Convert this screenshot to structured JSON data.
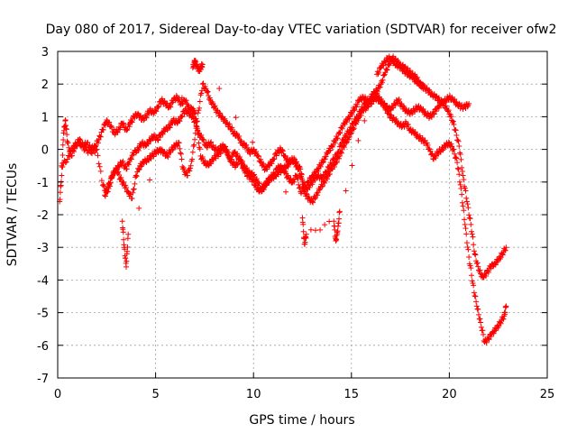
{
  "chart_data": {
    "type": "scatter",
    "title": "Day 080 of 2017, Sidereal Day-to-day VTEC variation (SDTVAR) for receiver ofw2",
    "xlabel": "GPS time / hours",
    "ylabel": "SDTVAR / TECUs",
    "xlim": [
      0,
      25
    ],
    "ylim": [
      -7,
      3
    ],
    "xticks": [
      0,
      5,
      10,
      15,
      20,
      25
    ],
    "yticks": [
      -7,
      -6,
      -5,
      -4,
      -3,
      -2,
      -1,
      0,
      1,
      2,
      3
    ],
    "grid": true,
    "marker": "plus",
    "marker_color": "#ff0000",
    "series": [
      {
        "values_note": "",
        "x": [
          0.1,
          0.2,
          0.3,
          0.4,
          0.5,
          0.7,
          0.9,
          1.1,
          1.3,
          1.5,
          1.7,
          1.9,
          2.1,
          2.3,
          2.5,
          2.7,
          2.9,
          3.1,
          3.3,
          3.5,
          3.7,
          3.9,
          4.1,
          4.3,
          4.5,
          4.7,
          4.9,
          5.1,
          5.3,
          5.5,
          5.7,
          5.9,
          6.1,
          6.3,
          6.5,
          6.7,
          6.9,
          7.0,
          7.2,
          7.4,
          7.6,
          7.8,
          8.0,
          8.2,
          8.4,
          8.6,
          8.8,
          9.0,
          9.2,
          9.4,
          9.6,
          9.8,
          10.0,
          10.2,
          10.4,
          10.6,
          10.8,
          11.0,
          11.2,
          11.4,
          11.6,
          11.8,
          12.0,
          12.2,
          12.4,
          12.6,
          12.8,
          13.0,
          13.2,
          13.4,
          13.6,
          13.8,
          14.0,
          14.2,
          14.4,
          14.6,
          14.8,
          15.0,
          15.2,
          15.4,
          15.6,
          15.8,
          16.0,
          16.2,
          16.4,
          16.6,
          16.8,
          17.0,
          17.2,
          17.4,
          17.6,
          17.8,
          18.0,
          18.2,
          18.4,
          18.6,
          18.8,
          19.0,
          19.2,
          19.4,
          19.6,
          19.8,
          20.0,
          20.2,
          20.4,
          20.6,
          20.8,
          21.0
        ],
        "y": [
          -1.6,
          -0.8,
          0.5,
          0.9,
          0.2,
          -0.2,
          0.1,
          0.3,
          0.1,
          0.2,
          0.0,
          0.1,
          0.3,
          0.6,
          0.9,
          0.7,
          0.5,
          0.6,
          0.8,
          0.6,
          0.8,
          1.0,
          1.1,
          0.9,
          1.0,
          1.2,
          1.1,
          1.3,
          1.5,
          1.4,
          1.3,
          1.5,
          1.6,
          1.4,
          1.5,
          1.3,
          1.2,
          1.1,
          0.5,
          0.3,
          0.1,
          0.2,
          0.0,
          0.0,
          0.1,
          0.0,
          -0.3,
          -0.1,
          -0.2,
          -0.4,
          -0.6,
          -0.7,
          -0.8,
          -1.0,
          -1.2,
          -1.1,
          -0.9,
          -0.8,
          -0.6,
          -0.5,
          -0.7,
          -0.9,
          -1.0,
          -0.8,
          -1.3,
          -1.2,
          -1.0,
          -0.8,
          -0.7,
          -0.5,
          -0.3,
          -0.1,
          0.1,
          0.3,
          0.5,
          0.8,
          0.9,
          1.1,
          1.3,
          1.5,
          1.6,
          1.5,
          1.4,
          1.6,
          1.5,
          1.4,
          1.3,
          1.2,
          1.4,
          1.5,
          1.3,
          1.2,
          1.1,
          1.2,
          1.3,
          1.2,
          1.1,
          1.0,
          1.1,
          1.3,
          1.4,
          1.5,
          1.6,
          1.5,
          1.4,
          1.3,
          1.3,
          1.4
        ]
      },
      {
        "values_note": "",
        "x": [
          0.2,
          0.5,
          0.8,
          1.1,
          1.4,
          1.7,
          2.0,
          2.3,
          2.5,
          2.7,
          2.9,
          3.1,
          3.3,
          3.5,
          3.7,
          3.9,
          4.1,
          4.3,
          4.5,
          4.7,
          4.9,
          5.1,
          5.3,
          5.5,
          5.7,
          5.9,
          6.1,
          6.3,
          6.5,
          6.7,
          6.9,
          7.1,
          7.3,
          7.5,
          7.7,
          7.9,
          8.1,
          8.3,
          8.5,
          8.7,
          8.9,
          9.1,
          9.3,
          9.5,
          9.7,
          9.9,
          10.1,
          10.3,
          10.5,
          10.7,
          10.9,
          11.1,
          11.3,
          11.5,
          11.7,
          11.9,
          12.1,
          12.3,
          12.5,
          12.7,
          12.9,
          13.1,
          13.3,
          13.5,
          13.7,
          13.9,
          14.1,
          14.3,
          14.5,
          14.7,
          14.9,
          15.1,
          15.3,
          15.5,
          15.7,
          15.9,
          16.1,
          16.3,
          16.5,
          16.7,
          16.9,
          17.1,
          17.3,
          17.5,
          17.7,
          17.9,
          18.1,
          18.3,
          18.5,
          18.7,
          18.9,
          19.1,
          19.3,
          19.5,
          19.7,
          19.9,
          20.1,
          20.3,
          20.5,
          20.7,
          20.9,
          21.1,
          21.3,
          21.5,
          21.7,
          21.9,
          22.1,
          22.3,
          22.5,
          22.7,
          22.9
        ],
        "y": [
          -0.5,
          -0.3,
          0.1,
          0.2,
          0.0,
          -0.1,
          0.0,
          -1.1,
          -1.3,
          -0.9,
          -0.7,
          -0.5,
          -0.4,
          -0.6,
          -0.3,
          -0.1,
          0.0,
          0.2,
          0.1,
          0.3,
          0.4,
          0.3,
          0.5,
          0.6,
          0.7,
          0.9,
          0.8,
          1.0,
          1.2,
          1.1,
          1.0,
          0.7,
          -0.2,
          -0.4,
          -0.5,
          -0.3,
          -0.2,
          -0.1,
          0.1,
          -0.2,
          -0.4,
          -0.5,
          -0.3,
          -0.6,
          -0.8,
          -0.9,
          -1.1,
          -1.3,
          -1.2,
          -1.0,
          -0.9,
          -0.8,
          -0.7,
          -0.6,
          -0.5,
          -0.4,
          -0.3,
          -0.6,
          -1.0,
          -1.2,
          -1.1,
          -0.9,
          -0.8,
          -0.9,
          -0.7,
          -0.5,
          -0.3,
          -0.1,
          0.2,
          0.4,
          0.6,
          0.8,
          1.0,
          1.2,
          1.4,
          1.5,
          1.7,
          1.8,
          2.0,
          2.3,
          2.6,
          2.8,
          2.7,
          2.6,
          2.5,
          2.4,
          2.3,
          2.2,
          2.0,
          1.9,
          1.8,
          1.7,
          1.6,
          1.5,
          1.4,
          1.2,
          1.0,
          0.6,
          0.1,
          -0.8,
          -1.6,
          -2.3,
          -3.2,
          -3.7,
          -3.9,
          -3.8,
          -3.6,
          -3.5,
          -3.4,
          -3.2,
          -3.0
        ]
      },
      {
        "values_note": "",
        "x": [
          2.4,
          2.6,
          2.8,
          3.0,
          3.2,
          3.4,
          3.6,
          3.8,
          4.0,
          4.2,
          4.4,
          4.6,
          4.8,
          5.0,
          5.2,
          5.4,
          5.6,
          5.8,
          6.0,
          6.2,
          6.4,
          6.6,
          6.8,
          7.0,
          7.2,
          7.4,
          7.6,
          7.8,
          8.0,
          8.2,
          8.4,
          8.6,
          8.8,
          9.0,
          9.2,
          9.4,
          9.6,
          9.8,
          10.0,
          10.2,
          10.4,
          10.6,
          10.8,
          11.0,
          11.2,
          11.4,
          11.6,
          11.8,
          12.0,
          12.2,
          12.4,
          12.6,
          12.8,
          13.0,
          13.2,
          13.4,
          13.6,
          13.8,
          14.0,
          14.2,
          14.4,
          14.6,
          14.8,
          15.0,
          15.2,
          15.4,
          15.6,
          15.8,
          16.0,
          16.2,
          16.4,
          16.6,
          16.8,
          17.0,
          17.2,
          17.4,
          17.6,
          17.8,
          18.0,
          18.2,
          18.4,
          18.6,
          18.8,
          19.0,
          19.2,
          19.4,
          19.6,
          19.8,
          20.0,
          20.2,
          20.4,
          20.6,
          20.8,
          21.0,
          21.2,
          21.4,
          21.6,
          21.8,
          22.0,
          22.2,
          22.4,
          22.6,
          22.8,
          22.9
        ],
        "y": [
          -1.4,
          -1.2,
          -0.8,
          -0.6,
          -0.9,
          -1.1,
          -1.3,
          -1.5,
          -0.8,
          -0.5,
          -0.4,
          -0.3,
          -0.2,
          -0.1,
          0.0,
          -0.1,
          -0.2,
          0.0,
          0.1,
          0.2,
          -0.6,
          -0.8,
          -0.5,
          0.3,
          1.2,
          2.0,
          1.8,
          1.5,
          1.3,
          1.1,
          1.0,
          0.8,
          0.7,
          0.5,
          0.4,
          0.2,
          0.1,
          -0.1,
          0.0,
          -0.2,
          -0.4,
          -0.6,
          -0.5,
          -0.3,
          -0.1,
          0.0,
          -0.2,
          -0.4,
          -0.3,
          -0.5,
          -0.6,
          -1.3,
          -1.5,
          -1.6,
          -1.4,
          -1.2,
          -1.0,
          -0.8,
          -0.6,
          -0.4,
          -0.2,
          0.1,
          0.3,
          0.5,
          0.8,
          1.0,
          1.2,
          1.3,
          1.5,
          1.7,
          1.6,
          1.4,
          1.2,
          1.0,
          0.9,
          0.8,
          0.7,
          0.8,
          0.6,
          0.5,
          0.4,
          0.3,
          0.2,
          0.0,
          -0.3,
          -0.1,
          0.0,
          0.1,
          0.2,
          0.0,
          -0.4,
          -1.2,
          -2.3,
          -3.3,
          -4.1,
          -4.8,
          -5.3,
          -5.9,
          -5.8,
          -5.6,
          -5.5,
          -5.3,
          -5.1,
          -4.8
        ]
      },
      {
        "values_note": "",
        "x": [
          3.3,
          3.4,
          3.5,
          3.6,
          6.9,
          7.0,
          7.1,
          7.2,
          7.3,
          7.4,
          12.5,
          12.6,
          12.7,
          14.1,
          14.2,
          14.3,
          14.4,
          16.3,
          16.5,
          16.7,
          16.9,
          17.1,
          17.3,
          17.5,
          17.7,
          17.9,
          18.1,
          18.3,
          18.5,
          18.7
        ],
        "y": [
          -2.2,
          -3.0,
          -3.6,
          -2.6,
          2.5,
          2.7,
          2.6,
          2.4,
          2.5,
          2.6,
          -2.1,
          -2.9,
          -2.6,
          -2.2,
          -2.8,
          -2.5,
          -1.9,
          2.3,
          2.5,
          2.7,
          2.8,
          2.7,
          2.6,
          2.5,
          2.4,
          2.3,
          2.2,
          2.1,
          2.0,
          1.9
        ]
      }
    ]
  }
}
